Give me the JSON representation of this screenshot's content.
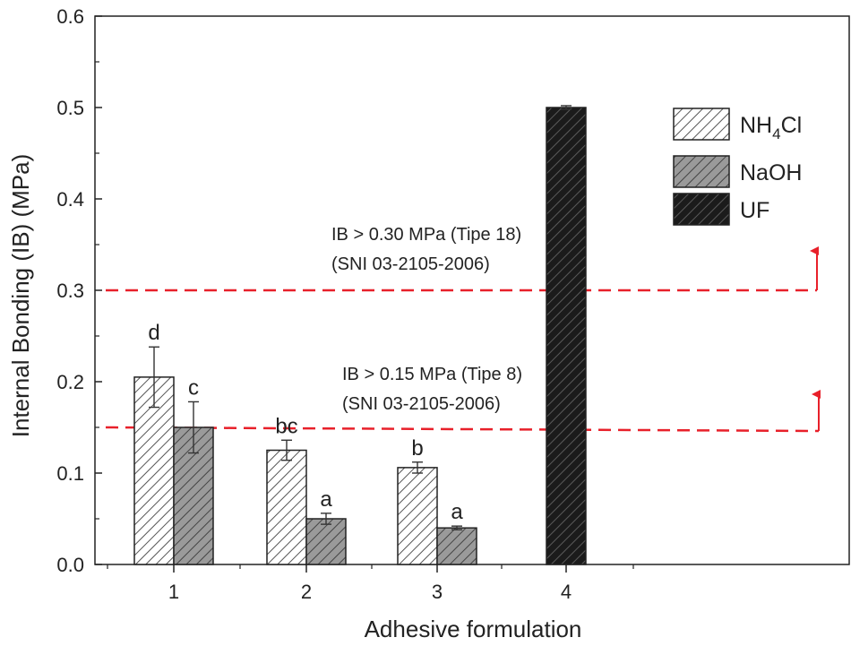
{
  "chart_data": {
    "type": "bar",
    "title": "",
    "xlabel": "Adhesive formulation",
    "ylabel": "Internal Bonding (IB) (MPa)",
    "ylim": [
      0,
      0.6
    ],
    "yticks": [
      "0.0",
      "0.1",
      "0.2",
      "0.3",
      "0.4",
      "0.5",
      "0.6"
    ],
    "categories": [
      "1",
      "2",
      "3",
      "4"
    ],
    "series": [
      {
        "name": "NH4Cl",
        "legend_main": "NH",
        "legend_sub": "4",
        "legend_tail": "Cl",
        "values": [
          0.205,
          0.125,
          0.106,
          null
        ],
        "errors": [
          0.033,
          0.011,
          0.006,
          null
        ],
        "labels": [
          "d",
          "bc",
          "b",
          ""
        ],
        "style": "hatch-light"
      },
      {
        "name": "NaOH",
        "legend_main": "NaOH",
        "legend_sub": "",
        "legend_tail": "",
        "values": [
          0.15,
          0.05,
          0.04,
          null
        ],
        "errors": [
          0.028,
          0.006,
          0.002,
          null
        ],
        "labels": [
          "c",
          "a",
          "a",
          ""
        ],
        "style": "hatch-mid"
      },
      {
        "name": "UF",
        "legend_main": "UF",
        "legend_sub": "",
        "legend_tail": "",
        "values": [
          null,
          null,
          null,
          0.5
        ],
        "errors": [
          null,
          null,
          null,
          0.002
        ],
        "labels": [
          "",
          "",
          "",
          ""
        ],
        "style": "hatch-dark"
      }
    ],
    "reference_lines": [
      {
        "value": 0.3,
        "label_line1": "IB > 0.30 MPa (Tipe 18)",
        "label_line2": "(SNI 03-2105-2006)",
        "color": "#e8202a"
      },
      {
        "value": 0.15,
        "label_line1": "IB > 0.15 MPa (Tipe 8)",
        "label_line2": "(SNI 03-2105-2006)",
        "color": "#e8202a"
      }
    ],
    "legend_position": "top-right",
    "grid": false
  }
}
